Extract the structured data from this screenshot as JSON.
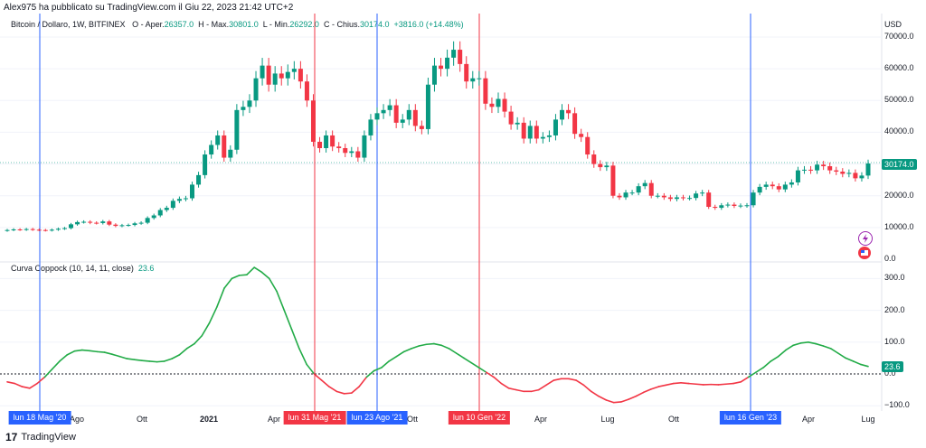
{
  "header": {
    "publisher": "Alex975 ha pubblicato su TradingView.com il Giu 22, 2023 21:42 UTC+2",
    "symbol": "Bitcoin / Dollaro, 1W, BITFINEX",
    "open_label": "O - Aper.",
    "open_value": "26357.0",
    "high_label": "H - Max.",
    "high_value": "30801.0",
    "low_label": "L - Min.",
    "low_value": "26292.0",
    "close_label": "C - Chius.",
    "close_value": "30174.0",
    "change_value": "+3816.0 (+14.48%)"
  },
  "price_axis": {
    "currency": "USD",
    "ticks": [
      "70000.0",
      "60000.0",
      "50000.0",
      "40000.0",
      "30000.0",
      "20000.0",
      "10000.0",
      "0.0"
    ],
    "last_price": "30174.0"
  },
  "indicator": {
    "label": "Curva Coppock (10, 14, 11, close)",
    "value": "23.6",
    "ticks": [
      "300.0",
      "200.0",
      "100.0",
      "0.0",
      "−100.0"
    ],
    "last_value": "23.6"
  },
  "time_axis": {
    "labels": [
      "Ago",
      "Ott",
      "2021",
      "Apr",
      "Ott",
      "Apr",
      "Lug",
      "Ott",
      "Apr",
      "Lug"
    ],
    "markers": [
      {
        "label": "lun 18 Mag '20",
        "color": "#2962ff"
      },
      {
        "label": "lun 31 Mag '21",
        "color": "#f23645"
      },
      {
        "label": "lun 23 Ago '21",
        "color": "#2962ff"
      },
      {
        "label": "lun 10 Gen '22",
        "color": "#f23645"
      },
      {
        "label": "lun 16 Gen '23",
        "color": "#2962ff"
      }
    ]
  },
  "footer": {
    "brand": "TradingView"
  },
  "colors": {
    "up": "#089981",
    "down": "#f23645",
    "coppock_up": "#22ab47",
    "coppock_down": "#f23645",
    "blue_marker": "#2962ff",
    "red_marker": "#f23645"
  },
  "chart_data": {
    "type": "candlestick",
    "title": "Bitcoin / Dollaro, 1W, BITFINEX",
    "ylim": [
      0,
      72000
    ],
    "series_close": [
      9200,
      9400,
      9300,
      9500,
      9300,
      9200,
      9100,
      9300,
      9600,
      9800,
      11000,
      11700,
      11800,
      11500,
      11400,
      11900,
      10900,
      10500,
      10700,
      10800,
      11300,
      11500,
      13000,
      13800,
      15500,
      16200,
      18400,
      19000,
      19200,
      23500,
      26500,
      33000,
      36000,
      39000,
      32000,
      34500,
      47000,
      48000,
      50000,
      57000,
      61000,
      55000,
      58500,
      57000,
      59000,
      60000,
      56000,
      50000,
      37000,
      35000,
      39000,
      35500,
      35000,
      33500,
      34000,
      32000,
      39000,
      44000,
      46000,
      47000,
      48500,
      43000,
      44000,
      47000,
      42000,
      41000,
      55000,
      61000,
      60000,
      63500,
      66000,
      61500,
      56000,
      57000,
      57000,
      49000,
      48000,
      50500,
      46500,
      42500,
      43000,
      38000,
      42000,
      38000,
      38500,
      39000,
      44000,
      47000,
      46000,
      39500,
      38500,
      33000,
      30000,
      29000,
      29500,
      20000,
      19500,
      21000,
      21000,
      23000,
      24000,
      20000,
      20000,
      19500,
      19000,
      19500,
      19300,
      19300,
      20700,
      21000,
      16500,
      16200,
      17000,
      17200,
      16800,
      16900,
      17000,
      21000,
      22800,
      23500,
      23000,
      22000,
      23500,
      24200,
      28000,
      28200,
      28000,
      29800,
      29300,
      28000,
      27600,
      26900,
      27200,
      25500,
      26357,
      30174
    ],
    "coppock_points": [
      -25,
      -30,
      -40,
      -45,
      -30,
      -10,
      15,
      40,
      60,
      72,
      75,
      73,
      70,
      68,
      62,
      55,
      48,
      45,
      42,
      40,
      38,
      40,
      48,
      60,
      80,
      95,
      120,
      160,
      210,
      270,
      300,
      310,
      312,
      335,
      320,
      300,
      260,
      200,
      140,
      80,
      30,
      0,
      -20,
      -40,
      -55,
      -62,
      -60,
      -40,
      -10,
      10,
      20,
      40,
      55,
      70,
      80,
      88,
      93,
      95,
      90,
      80,
      65,
      50,
      35,
      20,
      5,
      -10,
      -30,
      -45,
      -50,
      -55,
      -55,
      -50,
      -35,
      -20,
      -15,
      -15,
      -20,
      -35,
      -55,
      -70,
      -82,
      -90,
      -88,
      -80,
      -70,
      -58,
      -48,
      -40,
      -35,
      -30,
      -28,
      -30,
      -32,
      -34,
      -33,
      -34,
      -32,
      -30,
      -25,
      -10,
      5,
      20,
      40,
      55,
      75,
      90,
      97,
      100,
      95,
      88,
      80,
      65,
      50,
      40,
      30,
      23.6
    ]
  }
}
